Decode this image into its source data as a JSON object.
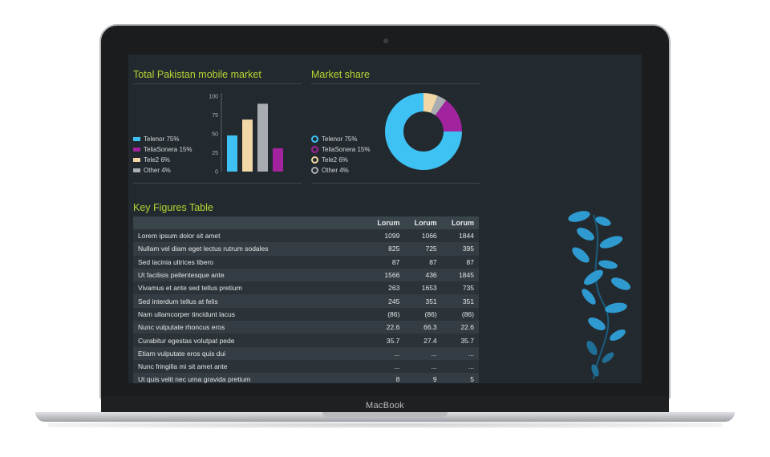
{
  "device": {
    "brand_label": "MacBook"
  },
  "market_panel": {
    "title": "Total Pakistan mobile market",
    "legend": [
      {
        "label": "Telenor 75%",
        "color": "#3ec1f3"
      },
      {
        "label": "TeliaSonera 15%",
        "color": "#a2239e"
      },
      {
        "label": "Tele2 6%",
        "color": "#f1d7a6"
      },
      {
        "label": "Other 4%",
        "color": "#a9acb1"
      }
    ]
  },
  "share_panel": {
    "title": "Market share",
    "legend": [
      {
        "label": "Telenor 75%",
        "color": "#3ec1f3"
      },
      {
        "label": "TeliaSonera 15%",
        "color": "#a2239e"
      },
      {
        "label": "Tele2 6%",
        "color": "#f1d7a6"
      },
      {
        "label": "Other 4%",
        "color": "#a9acb1"
      }
    ]
  },
  "chart_data": [
    {
      "type": "bar",
      "ylim": [
        0,
        100
      ],
      "yticks": [
        "100",
        "75",
        "50",
        "25",
        "0"
      ],
      "values": [
        48,
        69,
        90,
        31
      ],
      "colors": [
        "#3ec1f3",
        "#f1d7a6",
        "#a9acb1",
        "#a2239e"
      ]
    },
    {
      "type": "pie",
      "categories": [
        "Telenor",
        "TeliaSonera",
        "Tele2",
        "Other"
      ],
      "values": [
        75,
        15,
        6,
        4
      ],
      "colors": [
        "#3ec1f3",
        "#a2239e",
        "#f1d7a6",
        "#a9acb1"
      ]
    }
  ],
  "key_figures": {
    "title": "Key Figures Table",
    "columns": [
      "Lorum",
      "Lorum",
      "Lorum"
    ],
    "rows": [
      {
        "label": "Lorem ipsum dolor sit amet",
        "values": [
          "1099",
          "1066",
          "1844"
        ]
      },
      {
        "label": "Nullam vel diam eget lectus rutrum sodales",
        "values": [
          "825",
          "725",
          "395"
        ]
      },
      {
        "label": "Sed lacinia ultrices libero",
        "values": [
          "87",
          "87",
          "87"
        ]
      },
      {
        "label": "Ut facilisis pellentesque ante",
        "values": [
          "1566",
          "436",
          "1845"
        ]
      },
      {
        "label": "Vivamus et ante sed tellus pretium",
        "values": [
          "263",
          "1653",
          "735"
        ]
      },
      {
        "label": "Sed interdum tellus at felis",
        "values": [
          "245",
          "351",
          "351"
        ]
      },
      {
        "label": "Nam ullamcorper tincidunt lacus",
        "values": [
          "(86)",
          "(86)",
          "(86)"
        ]
      },
      {
        "label": "Nunc vulputate rhoncus eros",
        "values": [
          "22.6",
          "66.3",
          "22.6"
        ]
      },
      {
        "label": "Curabitur egestas volutpat pede",
        "values": [
          "35.7",
          "27.4",
          "35.7"
        ]
      },
      {
        "label": "Etiam vulputate eros quis dui",
        "values": [
          "...",
          "...",
          "..."
        ]
      },
      {
        "label": "Nunc fringilla mi sit amet ante",
        "values": [
          "...",
          "...",
          "..."
        ]
      },
      {
        "label": "Ut quis velit nec urna gravida pretium",
        "values": [
          "8",
          "9",
          "5"
        ]
      }
    ]
  }
}
